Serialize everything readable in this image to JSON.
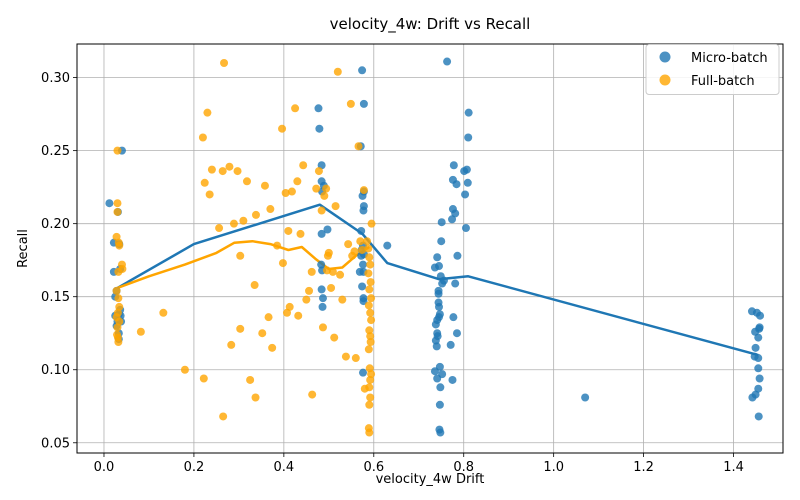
{
  "chart_data": {
    "type": "scatter",
    "title": "velocity_4w: Drift vs Recall",
    "xlabel": "velocity_4w Drift",
    "ylabel": "Recall",
    "xlim": [
      -0.06,
      1.51
    ],
    "ylim": [
      0.043,
      0.323
    ],
    "xticks": [
      0.0,
      0.2,
      0.4,
      0.6,
      0.8,
      1.0,
      1.2,
      1.4
    ],
    "xtick_labels": [
      "0.0",
      "0.2",
      "0.4",
      "0.6",
      "0.8",
      "1.0",
      "1.2",
      "1.4"
    ],
    "yticks": [
      0.05,
      0.1,
      0.15,
      0.2,
      0.25,
      0.3
    ],
    "ytick_labels": [
      "0.05",
      "0.10",
      "0.15",
      "0.20",
      "0.25",
      "0.30"
    ],
    "grid": true,
    "legend_position": "top-right",
    "series": [
      {
        "name": "Micro-batch",
        "color": "#1f77b4",
        "points": [
          [
            0.012,
            0.214
          ],
          [
            0.022,
            0.187
          ],
          [
            0.022,
            0.167
          ],
          [
            0.028,
            0.154
          ],
          [
            0.025,
            0.137
          ],
          [
            0.03,
            0.133
          ],
          [
            0.028,
            0.13
          ],
          [
            0.033,
            0.125
          ],
          [
            0.033,
            0.121
          ],
          [
            0.036,
            0.141
          ],
          [
            0.037,
            0.137
          ],
          [
            0.031,
            0.208
          ],
          [
            0.034,
            0.186
          ],
          [
            0.038,
            0.133
          ],
          [
            0.04,
            0.25
          ],
          [
            0.036,
            0.169
          ],
          [
            0.025,
            0.15
          ],
          [
            0.033,
            0.138
          ],
          [
            0.477,
            0.279
          ],
          [
            0.479,
            0.265
          ],
          [
            0.484,
            0.24
          ],
          [
            0.484,
            0.229
          ],
          [
            0.489,
            0.226
          ],
          [
            0.485,
            0.222
          ],
          [
            0.497,
            0.196
          ],
          [
            0.484,
            0.193
          ],
          [
            0.483,
            0.172
          ],
          [
            0.485,
            0.168
          ],
          [
            0.484,
            0.155
          ],
          [
            0.487,
            0.149
          ],
          [
            0.486,
            0.143
          ],
          [
            0.574,
            0.305
          ],
          [
            0.578,
            0.282
          ],
          [
            0.571,
            0.253
          ],
          [
            0.578,
            0.222
          ],
          [
            0.575,
            0.219
          ],
          [
            0.578,
            0.212
          ],
          [
            0.577,
            0.209
          ],
          [
            0.572,
            0.195
          ],
          [
            0.576,
            0.185
          ],
          [
            0.573,
            0.182
          ],
          [
            0.578,
            0.179
          ],
          [
            0.572,
            0.178
          ],
          [
            0.576,
            0.172
          ],
          [
            0.569,
            0.167
          ],
          [
            0.577,
            0.167
          ],
          [
            0.574,
            0.157
          ],
          [
            0.577,
            0.149
          ],
          [
            0.577,
            0.147
          ],
          [
            0.576,
            0.098
          ],
          [
            0.63,
            0.185
          ],
          [
            0.763,
            0.311
          ],
          [
            0.811,
            0.276
          ],
          [
            0.81,
            0.259
          ],
          [
            0.778,
            0.24
          ],
          [
            0.807,
            0.237
          ],
          [
            0.801,
            0.236
          ],
          [
            0.776,
            0.23
          ],
          [
            0.809,
            0.228
          ],
          [
            0.784,
            0.227
          ],
          [
            0.803,
            0.22
          ],
          [
            0.776,
            0.21
          ],
          [
            0.781,
            0.207
          ],
          [
            0.774,
            0.203
          ],
          [
            0.751,
            0.201
          ],
          [
            0.805,
            0.197
          ],
          [
            0.75,
            0.188
          ],
          [
            0.786,
            0.178
          ],
          [
            0.741,
            0.177
          ],
          [
            0.745,
            0.171
          ],
          [
            0.736,
            0.17
          ],
          [
            0.749,
            0.164
          ],
          [
            0.756,
            0.161
          ],
          [
            0.752,
            0.159
          ],
          [
            0.781,
            0.159
          ],
          [
            0.744,
            0.154
          ],
          [
            0.744,
            0.152
          ],
          [
            0.744,
            0.146
          ],
          [
            0.745,
            0.143
          ],
          [
            0.747,
            0.138
          ],
          [
            0.745,
            0.136
          ],
          [
            0.741,
            0.134
          ],
          [
            0.738,
            0.131
          ],
          [
            0.777,
            0.136
          ],
          [
            0.741,
            0.125
          ],
          [
            0.742,
            0.123
          ],
          [
            0.785,
            0.125
          ],
          [
            0.738,
            0.12
          ],
          [
            0.74,
            0.116
          ],
          [
            0.771,
            0.117
          ],
          [
            0.747,
            0.102
          ],
          [
            0.736,
            0.099
          ],
          [
            0.752,
            0.097
          ],
          [
            0.741,
            0.094
          ],
          [
            0.775,
            0.093
          ],
          [
            0.748,
            0.088
          ],
          [
            0.747,
            0.076
          ],
          [
            0.746,
            0.059
          ],
          [
            0.748,
            0.057
          ],
          [
            1.07,
            0.081
          ],
          [
            1.441,
            0.14
          ],
          [
            1.452,
            0.139
          ],
          [
            1.459,
            0.137
          ],
          [
            1.458,
            0.129
          ],
          [
            1.448,
            0.126
          ],
          [
            1.455,
            0.122
          ],
          [
            1.449,
            0.115
          ],
          [
            1.447,
            0.109
          ],
          [
            1.455,
            0.108
          ],
          [
            1.455,
            0.101
          ],
          [
            1.458,
            0.094
          ],
          [
            1.455,
            0.087
          ],
          [
            1.449,
            0.083
          ],
          [
            1.442,
            0.081
          ],
          [
            1.456,
            0.068
          ],
          [
            1.457,
            0.128
          ]
        ]
      },
      {
        "name": "Full-batch",
        "color": "#ffa500",
        "points": [
          [
            0.03,
            0.25
          ],
          [
            0.03,
            0.214
          ],
          [
            0.03,
            0.208
          ],
          [
            0.028,
            0.191
          ],
          [
            0.033,
            0.187
          ],
          [
            0.034,
            0.185
          ],
          [
            0.04,
            0.172
          ],
          [
            0.041,
            0.169
          ],
          [
            0.032,
            0.167
          ],
          [
            0.028,
            0.154
          ],
          [
            0.032,
            0.149
          ],
          [
            0.034,
            0.143
          ],
          [
            0.031,
            0.139
          ],
          [
            0.028,
            0.136
          ],
          [
            0.034,
            0.133
          ],
          [
            0.03,
            0.129
          ],
          [
            0.029,
            0.124
          ],
          [
            0.031,
            0.122
          ],
          [
            0.032,
            0.119
          ],
          [
            0.082,
            0.126
          ],
          [
            0.132,
            0.139
          ],
          [
            0.18,
            0.1
          ],
          [
            0.267,
            0.31
          ],
          [
            0.23,
            0.276
          ],
          [
            0.22,
            0.259
          ],
          [
            0.224,
            0.228
          ],
          [
            0.235,
            0.22
          ],
          [
            0.24,
            0.237
          ],
          [
            0.256,
            0.197
          ],
          [
            0.264,
            0.236
          ],
          [
            0.279,
            0.239
          ],
          [
            0.289,
            0.2
          ],
          [
            0.297,
            0.236
          ],
          [
            0.303,
            0.178
          ],
          [
            0.31,
            0.202
          ],
          [
            0.318,
            0.229
          ],
          [
            0.335,
            0.158
          ],
          [
            0.338,
            0.206
          ],
          [
            0.358,
            0.226
          ],
          [
            0.37,
            0.21
          ],
          [
            0.385,
            0.185
          ],
          [
            0.396,
            0.265
          ],
          [
            0.398,
            0.173
          ],
          [
            0.404,
            0.221
          ],
          [
            0.407,
            0.139
          ],
          [
            0.41,
            0.195
          ],
          [
            0.413,
            0.143
          ],
          [
            0.418,
            0.222
          ],
          [
            0.425,
            0.279
          ],
          [
            0.43,
            0.229
          ],
          [
            0.432,
            0.137
          ],
          [
            0.437,
            0.193
          ],
          [
            0.443,
            0.24
          ],
          [
            0.45,
            0.148
          ],
          [
            0.456,
            0.154
          ],
          [
            0.462,
            0.167
          ],
          [
            0.472,
            0.224
          ],
          [
            0.478,
            0.236
          ],
          [
            0.484,
            0.209
          ],
          [
            0.487,
            0.129
          ],
          [
            0.49,
            0.219
          ],
          [
            0.494,
            0.224
          ],
          [
            0.496,
            0.168
          ],
          [
            0.498,
            0.178
          ],
          [
            0.5,
            0.18
          ],
          [
            0.505,
            0.156
          ],
          [
            0.509,
            0.167
          ],
          [
            0.512,
            0.122
          ],
          [
            0.515,
            0.212
          ],
          [
            0.52,
            0.304
          ],
          [
            0.525,
            0.165
          ],
          [
            0.53,
            0.148
          ],
          [
            0.538,
            0.109
          ],
          [
            0.543,
            0.186
          ],
          [
            0.549,
            0.282
          ],
          [
            0.552,
            0.178
          ],
          [
            0.557,
            0.181
          ],
          [
            0.56,
            0.108
          ],
          [
            0.566,
            0.253
          ],
          [
            0.57,
            0.188
          ],
          [
            0.574,
            0.182
          ],
          [
            0.578,
            0.223
          ],
          [
            0.58,
            0.087
          ],
          [
            0.585,
            0.188
          ],
          [
            0.588,
            0.183
          ],
          [
            0.59,
            0.177
          ],
          [
            0.592,
            0.172
          ],
          [
            0.588,
            0.166
          ],
          [
            0.593,
            0.16
          ],
          [
            0.59,
            0.155
          ],
          [
            0.594,
            0.149
          ],
          [
            0.589,
            0.144
          ],
          [
            0.592,
            0.139
          ],
          [
            0.594,
            0.134
          ],
          [
            0.59,
            0.127
          ],
          [
            0.592,
            0.123
          ],
          [
            0.593,
            0.119
          ],
          [
            0.589,
            0.114
          ],
          [
            0.591,
            0.101
          ],
          [
            0.594,
            0.097
          ],
          [
            0.592,
            0.093
          ],
          [
            0.59,
            0.088
          ],
          [
            0.592,
            0.081
          ],
          [
            0.59,
            0.076
          ],
          [
            0.589,
            0.06
          ],
          [
            0.59,
            0.057
          ],
          [
            0.595,
            0.2
          ],
          [
            0.222,
            0.094
          ],
          [
            0.265,
            0.068
          ],
          [
            0.283,
            0.117
          ],
          [
            0.303,
            0.128
          ],
          [
            0.325,
            0.093
          ],
          [
            0.337,
            0.081
          ],
          [
            0.352,
            0.125
          ],
          [
            0.366,
            0.136
          ],
          [
            0.374,
            0.115
          ],
          [
            0.463,
            0.083
          ]
        ]
      }
    ],
    "trend_lines": [
      {
        "series": "Micro-batch",
        "color": "#1f77b4",
        "points": [
          [
            0.03,
            0.156
          ],
          [
            0.2,
            0.186
          ],
          [
            0.48,
            0.213
          ],
          [
            0.575,
            0.193
          ],
          [
            0.63,
            0.173
          ],
          [
            0.745,
            0.162
          ],
          [
            0.81,
            0.164
          ],
          [
            1.455,
            0.11
          ]
        ]
      },
      {
        "series": "Full-batch",
        "color": "#ffa500",
        "points": [
          [
            0.03,
            0.156
          ],
          [
            0.1,
            0.164
          ],
          [
            0.18,
            0.172
          ],
          [
            0.25,
            0.18
          ],
          [
            0.29,
            0.187
          ],
          [
            0.33,
            0.188
          ],
          [
            0.37,
            0.186
          ],
          [
            0.41,
            0.182
          ],
          [
            0.44,
            0.184
          ],
          [
            0.47,
            0.176
          ],
          [
            0.5,
            0.169
          ],
          [
            0.53,
            0.17
          ],
          [
            0.56,
            0.178
          ],
          [
            0.59,
            0.184
          ]
        ]
      }
    ]
  }
}
